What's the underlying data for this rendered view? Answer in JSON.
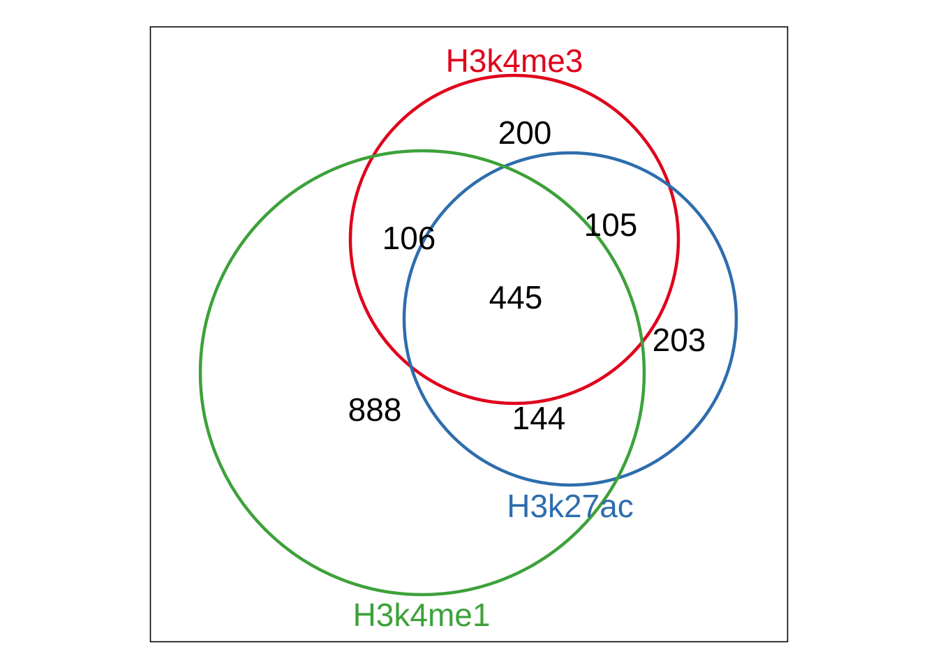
{
  "diagram": {
    "type": "venn",
    "sets": [
      {
        "id": "h3k4me3",
        "name": "H3k4me3",
        "color": "#E0001B"
      },
      {
        "id": "h3k27ac",
        "name": "H3k27ac",
        "color": "#2E6DAD"
      },
      {
        "id": "h3k4me1",
        "name": "H3k4me1",
        "color": "#3DA13A"
      }
    ],
    "regions": [
      {
        "id": "only-h3k4me3",
        "sets": [
          "H3k4me3"
        ],
        "count": "200"
      },
      {
        "id": "h3k4me3-h3k4me1",
        "sets": [
          "H3k4me3",
          "H3k4me1"
        ],
        "count": "106"
      },
      {
        "id": "h3k4me3-h3k27ac",
        "sets": [
          "H3k4me3",
          "H3k27ac"
        ],
        "count": "105"
      },
      {
        "id": "all-three",
        "sets": [
          "H3k4me3",
          "H3k27ac",
          "H3k4me1"
        ],
        "count": "445"
      },
      {
        "id": "only-h3k27ac",
        "sets": [
          "H3k27ac"
        ],
        "count": "203"
      },
      {
        "id": "only-h3k4me1",
        "sets": [
          "H3k4me1"
        ],
        "count": "888"
      },
      {
        "id": "h3k27ac-h3k4me1",
        "sets": [
          "H3k27ac",
          "H3k4me1"
        ],
        "count": "144"
      }
    ]
  }
}
